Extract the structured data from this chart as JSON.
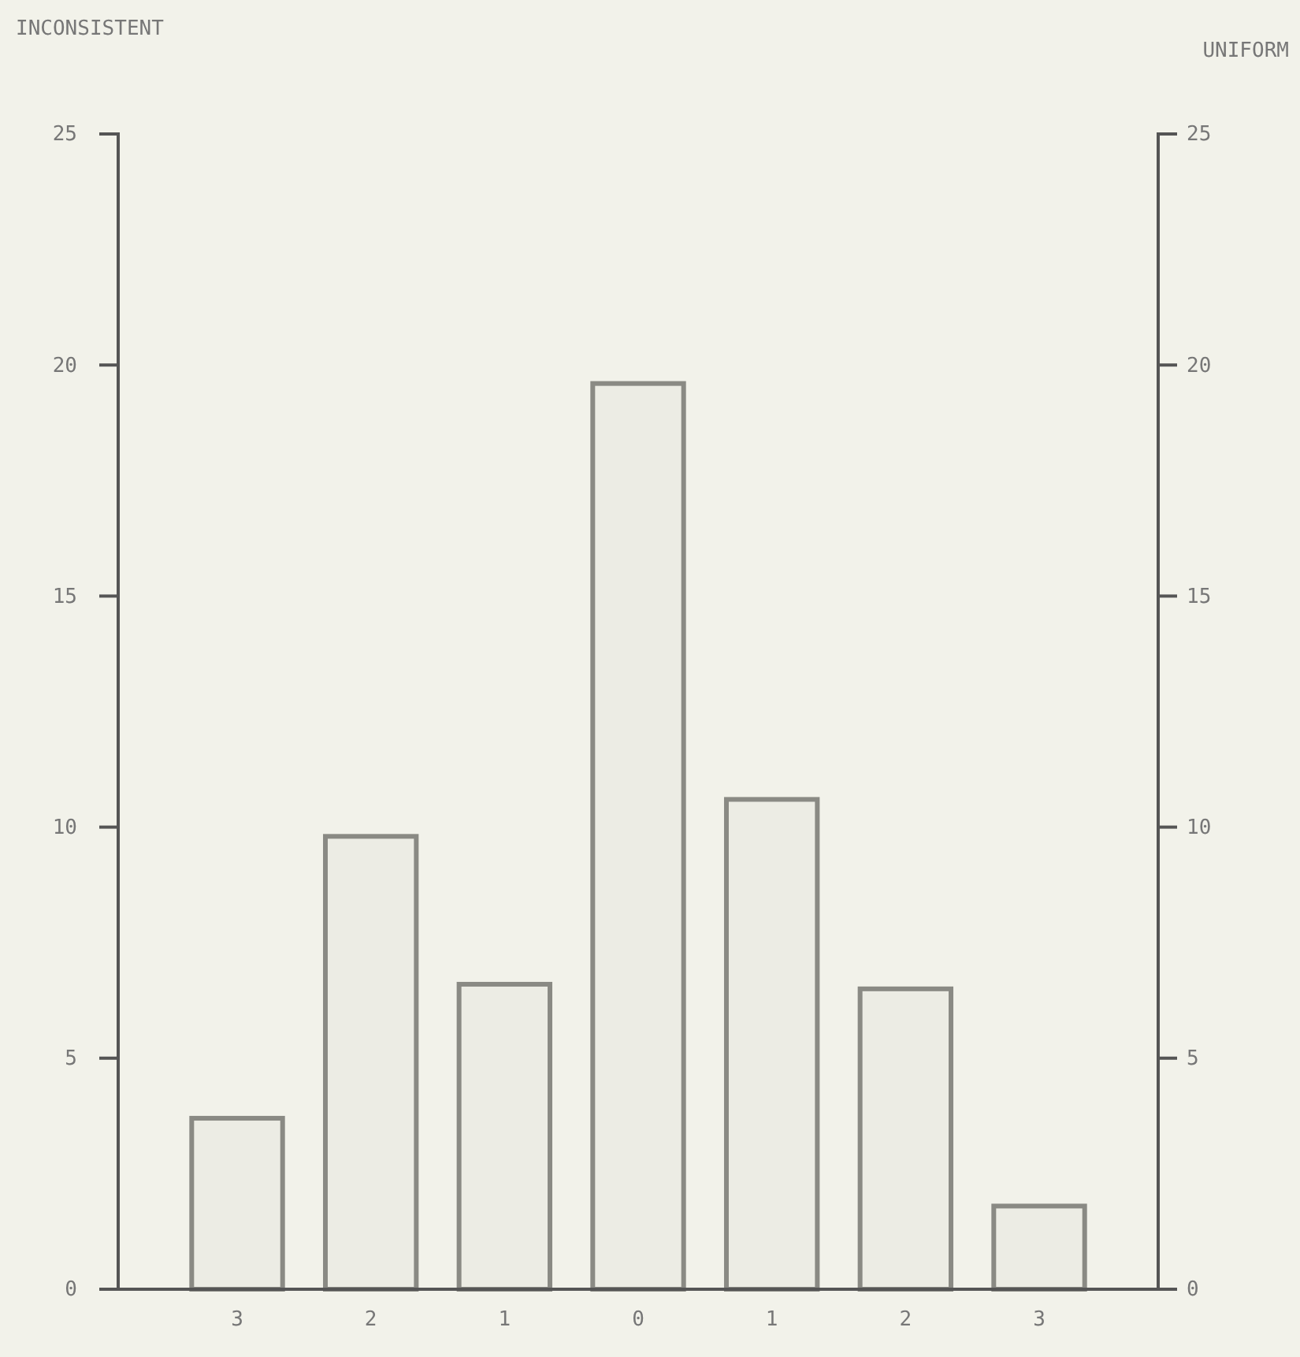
{
  "chart_data": {
    "type": "bar",
    "ylabel": "INCONSISTENT",
    "y2label": "UNIFORM",
    "categories": [
      "3",
      "2",
      "1",
      "0",
      "1",
      "2",
      "3"
    ],
    "values": [
      3.7,
      9.8,
      6.6,
      19.6,
      10.6,
      6.5,
      1.8
    ],
    "color": "#ecece4",
    "ylim": [
      0,
      25
    ],
    "yticks": [
      0,
      5,
      10,
      15,
      20,
      25
    ],
    "y2lim": [
      0,
      25
    ],
    "y2ticks": [
      0,
      5,
      10,
      15,
      20,
      25
    ],
    "grid": false
  }
}
